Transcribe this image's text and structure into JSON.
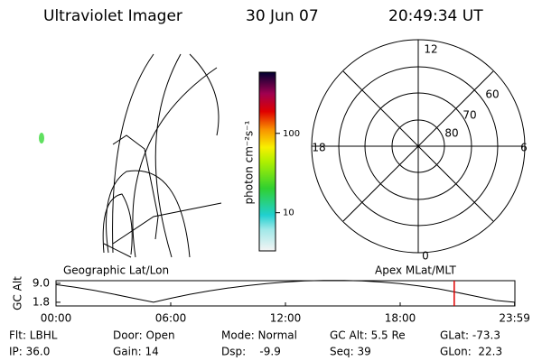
{
  "header": {
    "title": "Ultraviolet Imager",
    "date": "30 Jun 07",
    "time": "20:49:34 UT"
  },
  "colorbar": {
    "label": "photon cm⁻²s⁻¹",
    "log": true,
    "lim": [
      3.3,
      590
    ],
    "ticks": [
      10,
      100
    ]
  },
  "polar": {
    "mlt_labels": [
      "12",
      "18",
      "6",
      "0"
    ],
    "lat_labels": [
      "60",
      "70",
      "80"
    ]
  },
  "map_labels": {
    "left": "Geographic Lat/Lon",
    "right": "Apex MLat/MLT"
  },
  "chart_data": {
    "type": "line",
    "ylabel": "GC Alt",
    "x": [
      0,
      1,
      2,
      3,
      4,
      5.1,
      6,
      7,
      8,
      9,
      10,
      11,
      12,
      13,
      14,
      15,
      16,
      17,
      18,
      19,
      20,
      21,
      22,
      23,
      23.98
    ],
    "series": [
      {
        "color": "#000000",
        "values": [
          8.5,
          7.5,
          6.3,
          4.9,
          3.4,
          1.8,
          3.3,
          4.8,
          6.1,
          7.2,
          8.1,
          8.9,
          9.5,
          9.9,
          10.1,
          10.1,
          9.9,
          9.5,
          8.9,
          8.0,
          6.9,
          5.5,
          4.0,
          2.5,
          1.8
        ]
      }
    ],
    "current_time": 20.826,
    "current_color": "#e00000",
    "xlim": [
      0,
      24
    ],
    "ylim": [
      0.4,
      10.0
    ],
    "xticks": [
      {
        "value": 0,
        "label": "00:00"
      },
      {
        "value": 6,
        "label": "06:00"
      },
      {
        "value": 12,
        "label": "12:00"
      },
      {
        "value": 18,
        "label": "18:00"
      },
      {
        "value": 23.983,
        "label": "23:59"
      }
    ],
    "yticks": [
      {
        "value": 1.8,
        "label": "1.8"
      },
      {
        "value": 9.0,
        "label": "9.0"
      }
    ]
  },
  "footer": {
    "rows": [
      [
        "Flt: LBHL",
        "Door: Open",
        "Mode: Normal",
        "GC Alt: 5.5 Re",
        "GLat: -73.3"
      ],
      [
        "IP: 36.0",
        "Gain: 14",
        "Dsp:    -9.9",
        "Seq: 39",
        "GLon:  22.3"
      ]
    ]
  }
}
